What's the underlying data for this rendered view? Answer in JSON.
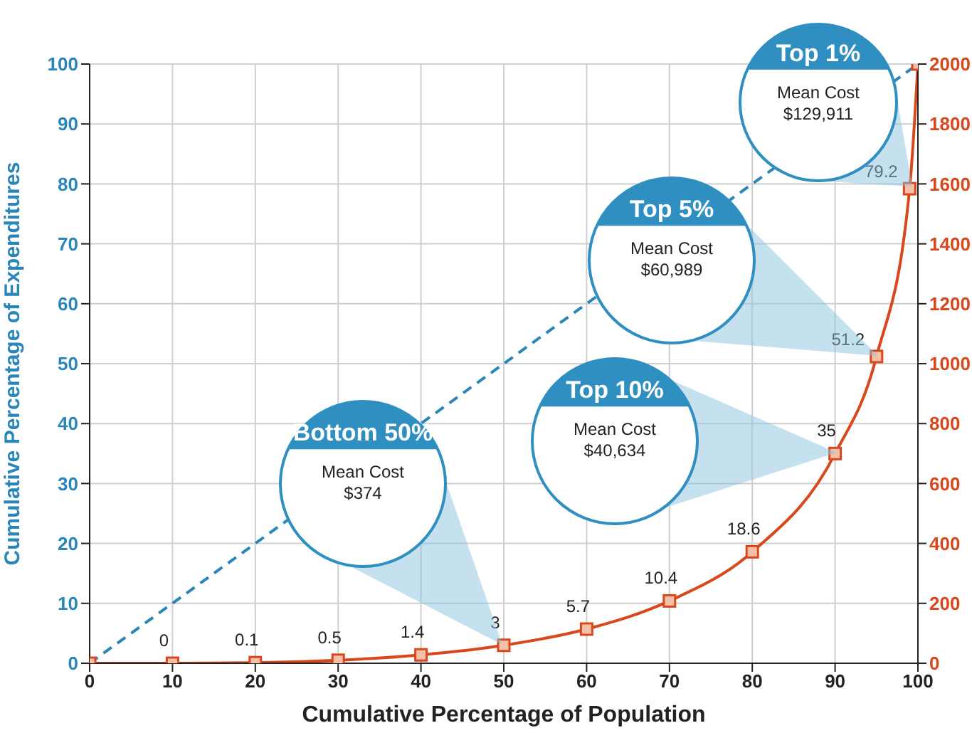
{
  "chart_data": {
    "type": "line",
    "xlabel": "Cumulative Percentage of Population",
    "ylabel": "Cumulative Percentage of Expenditures",
    "xlim": [
      0,
      100
    ],
    "xticks": [
      0,
      10,
      20,
      30,
      40,
      50,
      60,
      70,
      80,
      90,
      100
    ],
    "ylim": [
      0,
      100
    ],
    "yticks": [
      0,
      10,
      20,
      30,
      40,
      50,
      60,
      70,
      80,
      90,
      100
    ],
    "y2lim": [
      0,
      2000
    ],
    "y2ticks": [
      0,
      200,
      400,
      600,
      800,
      1000,
      1200,
      1400,
      1600,
      1800,
      2000
    ],
    "grid": true,
    "series": [
      {
        "color": "#2a86b8",
        "x": [
          0,
          100
        ],
        "values": [
          0,
          100
        ],
        "line_style": "dashed",
        "marker": "none"
      },
      {
        "color": "#d9481c",
        "x": [
          0,
          10,
          20,
          30,
          40,
          50,
          60,
          70,
          80,
          90,
          95,
          99,
          100
        ],
        "values": [
          0,
          0,
          0.1,
          0.5,
          1.4,
          3,
          5.7,
          10.4,
          18.6,
          35,
          51.2,
          79.2,
          100
        ],
        "line_style": "solid",
        "marker": "square",
        "value_labels": [
          null,
          "0",
          "0.1",
          "0.5",
          "1.4",
          "3",
          "5.7",
          "10.4",
          "18.6",
          "35",
          "51.2",
          "79.2",
          null
        ]
      }
    ],
    "annotations": [
      "Top 1%\nMean Cost\n$129,911",
      "Top 5%\nMean Cost\n$60,989",
      "Top 10%\nMean Cost\n$40,634",
      "Bottom 50%\nMean Cost\n$374"
    ]
  }
}
